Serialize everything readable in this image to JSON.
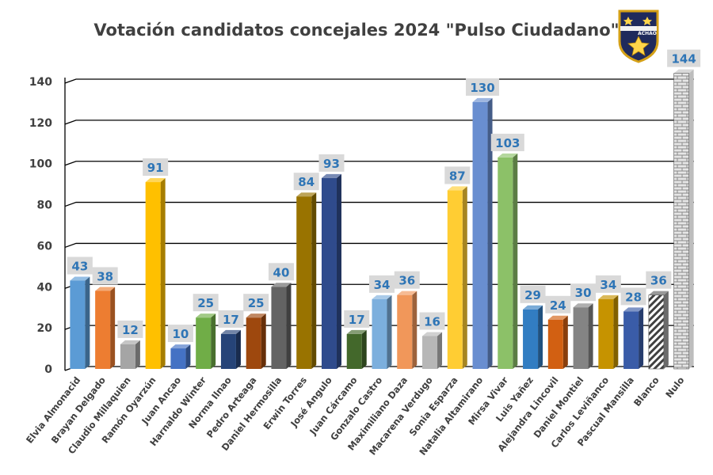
{
  "chart_data": {
    "type": "bar",
    "title": "Votación candidatos concejales 2024 \"Pulso Ciudadano\"",
    "xlabel": "",
    "ylabel": "",
    "ylim": [
      0,
      140
    ],
    "yticks": [
      0,
      20,
      40,
      60,
      80,
      100,
      120,
      140
    ],
    "grid": true,
    "legend": "none",
    "categories": [
      "Elvia Almonacid",
      "Brayan Delgado",
      "Claudio Millaquien",
      "Ramón Oyarzún",
      "Juan Ancao",
      "Harnaldo Winter",
      "Norma Ilnao",
      "Pedro Arteaga",
      "Daniel Hermosilla",
      "Erwin Torres",
      "José Angulo",
      "Juan Cárcamo",
      "Gonzalo Castro",
      "Maximiliano Daza",
      "Macarena Verdugo",
      "Sonia Esparza",
      "Natalia Altamirano",
      "Mirsa Vivar",
      "Luis Yañez",
      "Alejandra Lincovil",
      "Daniel Montiel",
      "Carlos Leviñanco",
      "Pascual Mansilla",
      "Blanco",
      "Nulo"
    ],
    "values": [
      43,
      38,
      12,
      91,
      10,
      25,
      17,
      25,
      40,
      84,
      93,
      17,
      34,
      36,
      16,
      87,
      130,
      103,
      29,
      24,
      30,
      34,
      28,
      36,
      144
    ],
    "colors": [
      "#5b9bd5",
      "#ed7d31",
      "#a5a5a5",
      "#ffc000",
      "#4472c4",
      "#70ad47",
      "#264478",
      "#9e480e",
      "#636363",
      "#997300",
      "#2f4b8c",
      "#43682b",
      "#7cafdd",
      "#f1975a",
      "#b7b7b7",
      "#ffcd33",
      "#698ed0",
      "#8cc168",
      "#327dc2",
      "#d26012",
      "#848484",
      "#c69300",
      "#3a5ca8",
      "pattern-hatch",
      "pattern-brick"
    ]
  },
  "logo": {
    "text": "ACHAO",
    "icon": "achao-shield-logo"
  }
}
